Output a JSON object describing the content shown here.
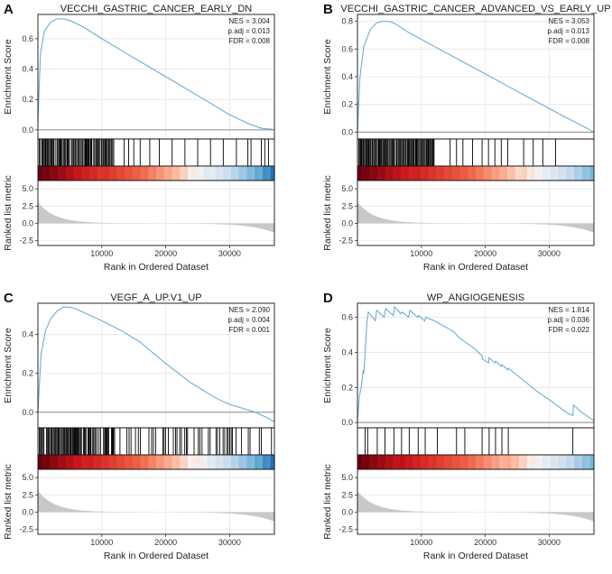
{
  "chart_data": [
    {
      "panel": "A",
      "type": "line",
      "title": "VECCHI_GASTRIC_CANCER_EARLY_DN",
      "stats": {
        "nes": "NES = 3.004",
        "padj": "p.adj = 0.013",
        "fdr": "FDR = 0.008"
      },
      "ylabel": "Enrichment Score",
      "ylim": [
        -0.06,
        0.76
      ],
      "yticks": [
        0.0,
        0.2,
        0.4,
        0.6
      ],
      "ytick_labels": [
        "0.0",
        "0.2",
        "0.4",
        "0.6"
      ],
      "x": [
        0,
        400,
        1000,
        2000,
        3000,
        4000,
        5000,
        7000,
        10000,
        14000,
        18000,
        22000,
        26000,
        30000,
        33000,
        35000,
        36500,
        37000
      ],
      "y": [
        0.05,
        0.5,
        0.65,
        0.71,
        0.73,
        0.73,
        0.72,
        0.68,
        0.6,
        0.5,
        0.4,
        0.3,
        0.2,
        0.1,
        0.04,
        0.01,
        0.005,
        0.0
      ],
      "hits": [
        1200,
        13500,
        14200,
        15000,
        16000,
        17500,
        19000,
        21000,
        23000,
        25000,
        27000,
        29000
      ],
      "hit_density": 0.9,
      "heatmap": "full"
    },
    {
      "panel": "B",
      "type": "line",
      "title": "VECCHI_GASTRIC_CANCER_ADVANCED_VS_EARLY_UP",
      "stats": {
        "nes": "NES = 3.053",
        "padj": "p.adj = 0.013",
        "fdr": "FDR = 0.008"
      },
      "ylabel": "Enrichment Score",
      "ylim": [
        -0.05,
        0.85
      ],
      "yticks": [
        0.0,
        0.2,
        0.4,
        0.6,
        0.8
      ],
      "ytick_labels": [
        "0.0",
        "0.2",
        "0.4",
        "0.6",
        "0.8"
      ],
      "x": [
        0,
        400,
        1000,
        2000,
        3000,
        4000,
        5000,
        6000,
        8000,
        12000,
        16000,
        20000,
        24000,
        28000,
        32000,
        35000,
        37000
      ],
      "y": [
        0.0,
        0.4,
        0.62,
        0.74,
        0.79,
        0.8,
        0.8,
        0.78,
        0.72,
        0.62,
        0.52,
        0.42,
        0.32,
        0.22,
        0.12,
        0.05,
        0.0
      ],
      "hits": [
        14500,
        15500,
        16500,
        18000,
        19500,
        20500,
        21500,
        22500,
        23500,
        26000,
        27500,
        29000,
        31000
      ],
      "hit_density": 0.95,
      "heatmap": "left"
    },
    {
      "panel": "C",
      "type": "line",
      "title": "VEGF_A_UP.V1_UP",
      "stats": {
        "nes": "NES = 2.090",
        "padj": "p.adj = 0.004",
        "fdr": "FDR = 0.001"
      },
      "ylabel": "Enrichment Score",
      "ylim": [
        -0.08,
        0.56
      ],
      "yticks": [
        0.0,
        0.2,
        0.4
      ],
      "ytick_labels": [
        "0.0",
        "0.2",
        "0.4"
      ],
      "x": [
        0,
        500,
        1200,
        2000,
        3000,
        4000,
        5000,
        6000,
        8000,
        10000,
        13000,
        16000,
        20000,
        24000,
        28000,
        30000,
        32000,
        34000,
        36000,
        37000
      ],
      "y": [
        0.0,
        0.3,
        0.42,
        0.48,
        0.52,
        0.54,
        0.54,
        0.53,
        0.5,
        0.47,
        0.42,
        0.36,
        0.25,
        0.15,
        0.07,
        0.04,
        0.02,
        0.0,
        -0.03,
        -0.05
      ],
      "hits": [],
      "hit_density": 0.85,
      "heatmap": "full"
    },
    {
      "panel": "D",
      "type": "line",
      "title": "WP_ANGIOGENESIS",
      "stats": {
        "nes": "NES = 1.814",
        "padj": "p.adj = 0.036",
        "fdr": "FDR = 0.022"
      },
      "ylabel": "Enrichment Score",
      "ylim": [
        -0.03,
        0.68
      ],
      "yticks": [
        0.0,
        0.2,
        0.4,
        0.6
      ],
      "ytick_labels": [
        "0.0",
        "0.2",
        "0.4",
        "0.6"
      ],
      "x": [
        0,
        300,
        600,
        900,
        1000,
        1500,
        1700,
        2800,
        3000,
        4200,
        4400,
        5600,
        5800,
        6800,
        7000,
        8000,
        8200,
        9400,
        9600,
        10500,
        10700,
        12000,
        14000,
        15000,
        16000,
        18000,
        19500,
        19600,
        20500,
        20600,
        21500,
        21600,
        22500,
        22600,
        23500,
        23600,
        26000,
        28000,
        30000,
        33000,
        33700,
        33800,
        35000,
        37000
      ],
      "y": [
        0.0,
        0.15,
        0.2,
        0.3,
        0.28,
        0.58,
        0.63,
        0.58,
        0.64,
        0.6,
        0.65,
        0.61,
        0.66,
        0.62,
        0.63,
        0.6,
        0.64,
        0.6,
        0.61,
        0.58,
        0.6,
        0.58,
        0.54,
        0.52,
        0.48,
        0.43,
        0.38,
        0.36,
        0.34,
        0.37,
        0.34,
        0.35,
        0.32,
        0.33,
        0.3,
        0.31,
        0.24,
        0.18,
        0.13,
        0.05,
        0.04,
        0.1,
        0.06,
        0.01
      ],
      "hits": [
        1200,
        1600,
        3100,
        4300,
        5700,
        6900,
        8100,
        9500,
        10600,
        12500,
        15500,
        16800,
        19500,
        20600,
        21600,
        22600,
        23600,
        33700
      ],
      "hit_density": 0,
      "heatmap": "left"
    }
  ],
  "shared": {
    "xlabel": "Rank in Ordered Dataset",
    "xlim": [
      0,
      37000
    ],
    "xticks": [
      10000,
      20000,
      30000
    ],
    "xtick_labels": [
      "10000",
      "20000",
      "30000"
    ],
    "metric_ylabel": "Ranked list metric",
    "metric_yticks": [
      5.0,
      2.5,
      0.0,
      -2.5
    ],
    "metric_ytick_labels": [
      "5.0",
      "2.5",
      "0.0",
      "-2.5"
    ],
    "metric_ylim": [
      -3.2,
      6.2
    ]
  },
  "colors": {
    "curve": "#6baed6",
    "fill": "#c8c8c8",
    "zero": "#8a8a8a",
    "hit": "#000000"
  }
}
